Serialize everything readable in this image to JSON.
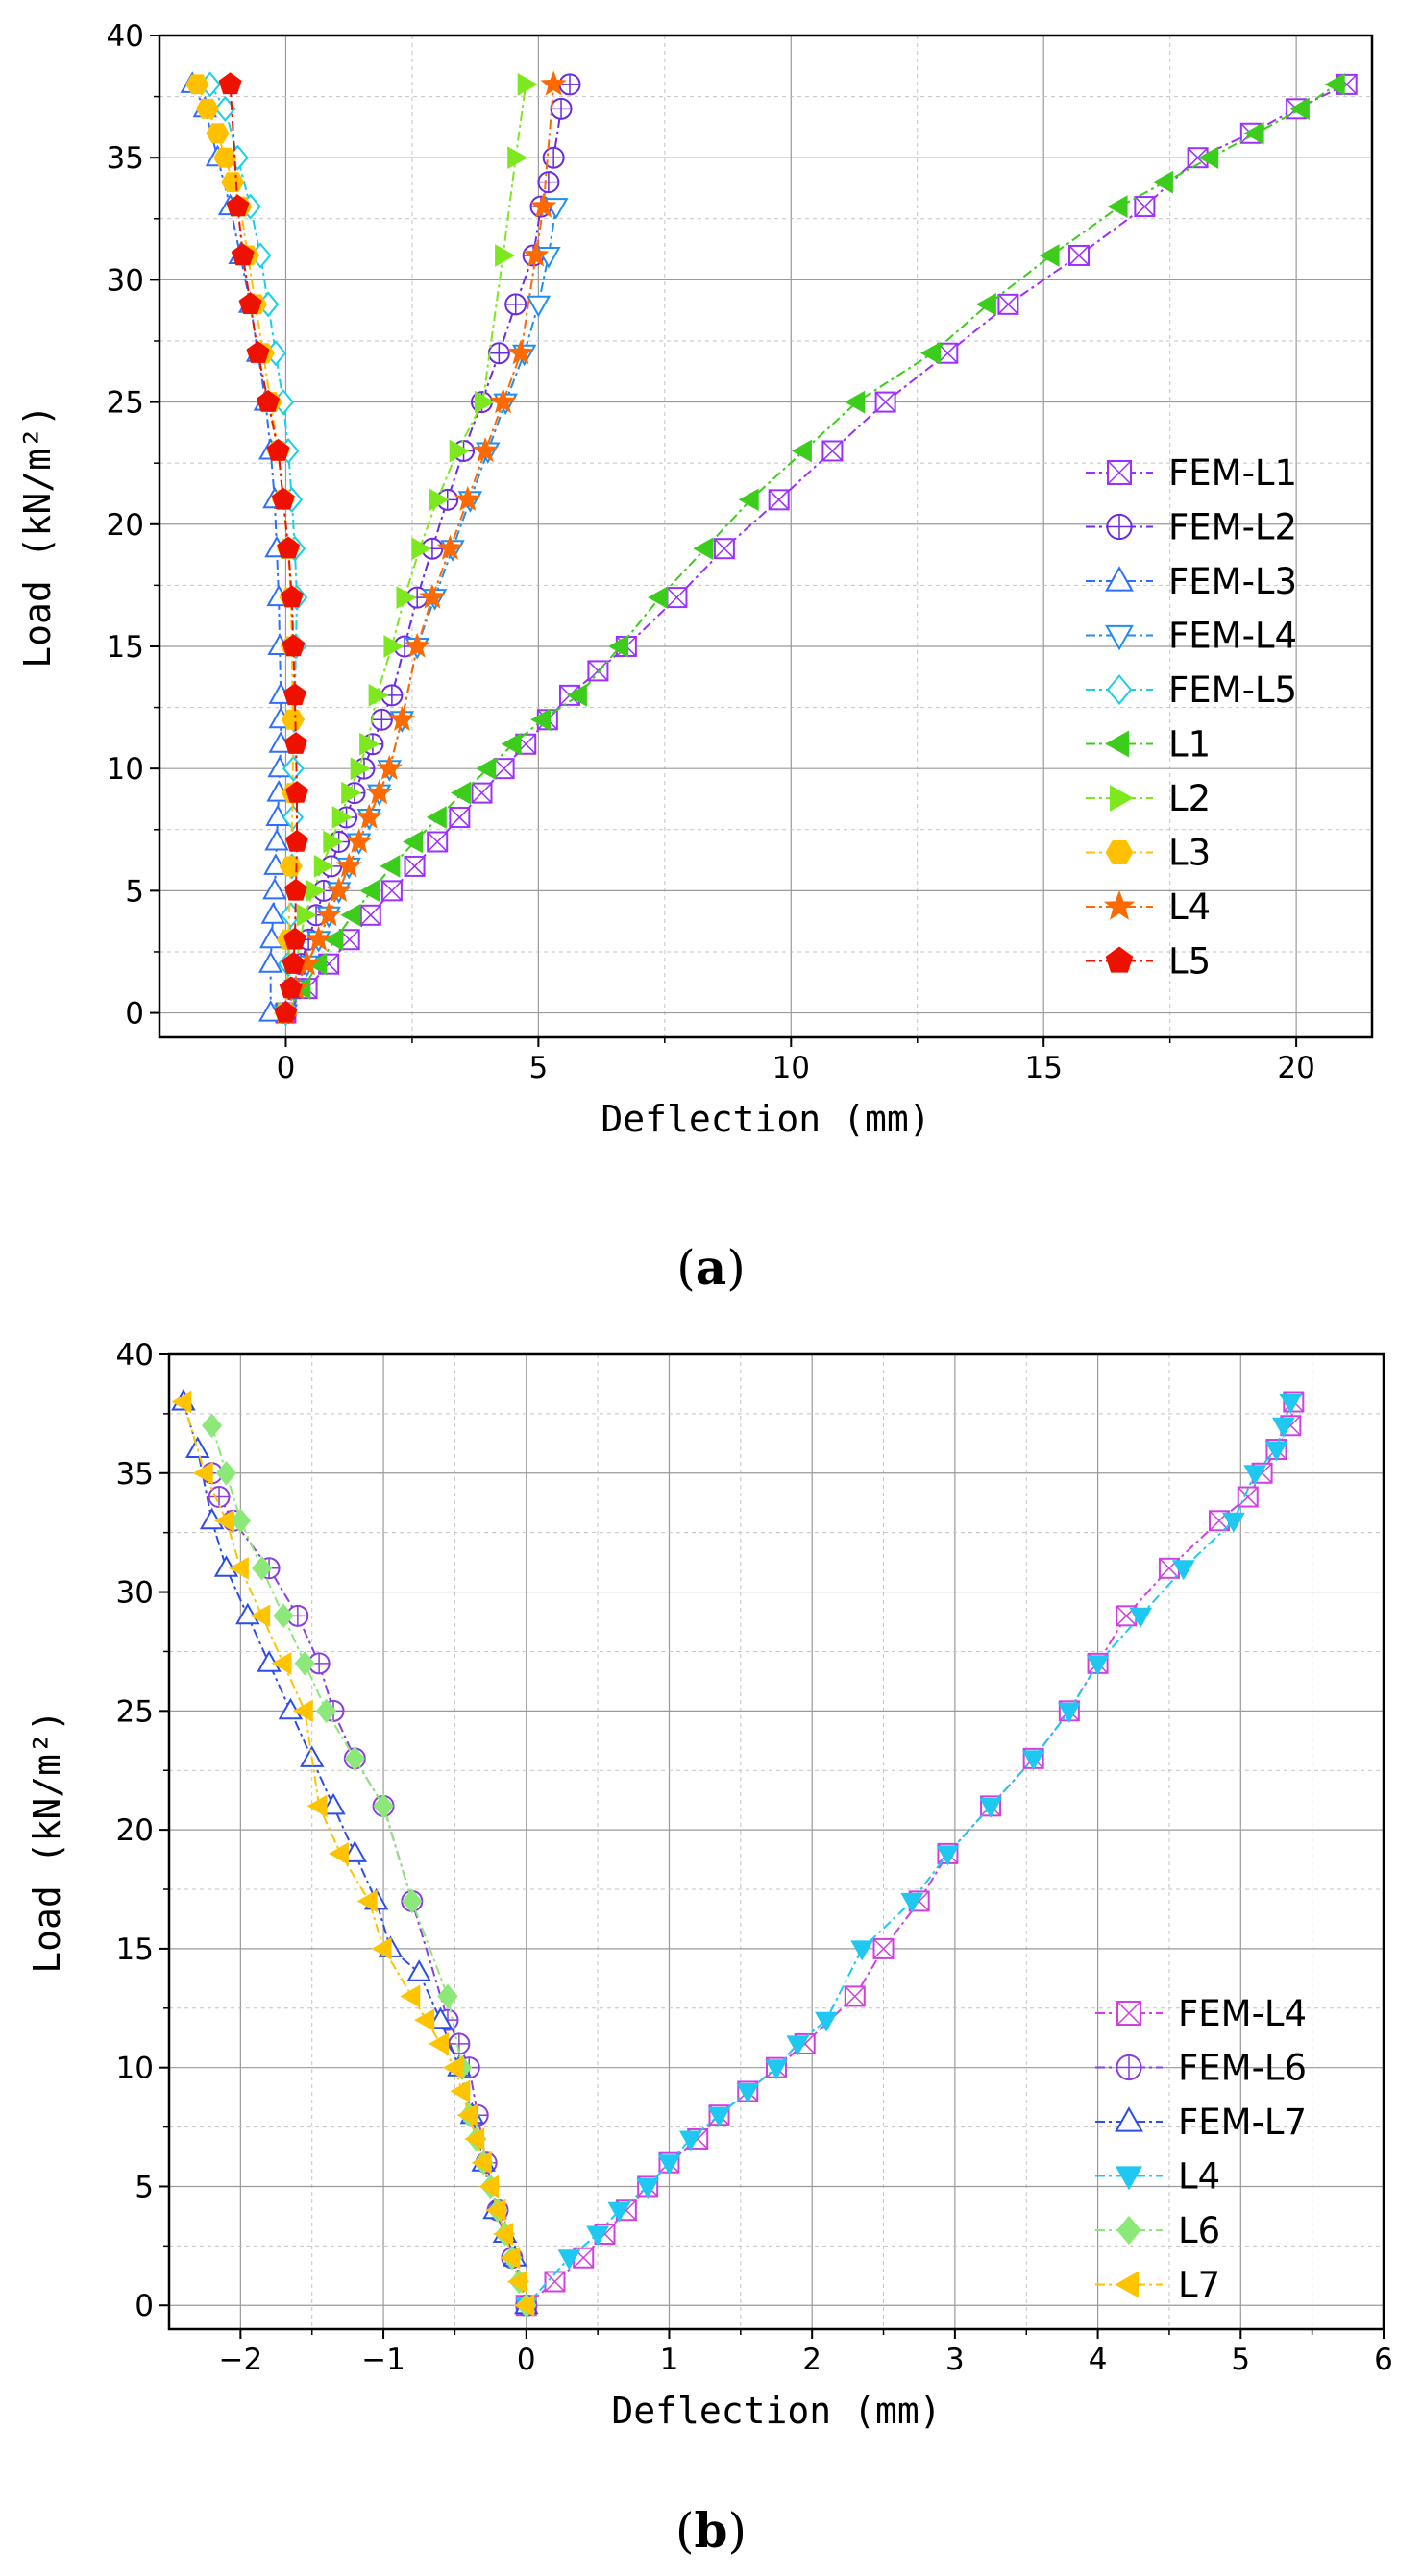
{
  "colors": {
    "FEM-L1": "#9b30ff",
    "FEM-L2": "#6a2be2",
    "FEM-L3": "#2f6fff",
    "FEM-L4a": "#1e8ff0",
    "FEM-L5": "#18d0e8",
    "L1": "#3ccd1c",
    "L2": "#7ee81e",
    "L3": "#ffc000",
    "L4a": "#ff6a00",
    "L5": "#ee1100",
    "FEM-L4b": "#d040e0",
    "FEM-L6": "#8a3ee0",
    "FEM-L7": "#2d4de8",
    "L4b": "#1ec8f0",
    "L6": "#8ce878",
    "L7": "#ffc400"
  },
  "chart_data": [
    {
      "type": "line",
      "panel": "(a)",
      "panel_letter": "a",
      "xlabel": "Deflection (mm)",
      "ylabel": "Load (kN/m²)",
      "xlim": [
        -2.5,
        21.5
      ],
      "ylim": [
        -1,
        40
      ],
      "xticks": [
        0,
        5,
        10,
        15,
        20
      ],
      "yticks": [
        0,
        5,
        10,
        15,
        20,
        25,
        30,
        35,
        40
      ],
      "grid": true,
      "legend_position": "lower-right",
      "series": [
        {
          "name": "FEM-L1",
          "marker": "square-x",
          "filled": false,
          "color_key": "FEM-L1",
          "x": [
            0,
            0.42,
            0.85,
            1.26,
            1.68,
            2.1,
            2.55,
            3.0,
            3.44,
            3.88,
            4.32,
            4.75,
            5.18,
            5.62,
            6.18,
            6.74,
            7.74,
            8.68,
            9.76,
            10.82,
            11.87,
            13.1,
            14.3,
            15.7,
            17.0,
            18.05,
            19.1,
            20.0,
            21.0
          ],
          "y": [
            0,
            1,
            2,
            3,
            4,
            5,
            6,
            7,
            8,
            9,
            10,
            11,
            12,
            13,
            14,
            15,
            17,
            19,
            21,
            23,
            25,
            27,
            29,
            31,
            33,
            35,
            36,
            37,
            38
          ]
        },
        {
          "name": "FEM-L2",
          "marker": "circle-plus",
          "filled": false,
          "color_key": "FEM-L2",
          "x": [
            0,
            0.15,
            0.3,
            0.45,
            0.6,
            0.75,
            0.9,
            1.05,
            1.2,
            1.36,
            1.55,
            1.72,
            1.9,
            2.1,
            2.35,
            2.6,
            2.9,
            3.2,
            3.52,
            3.88,
            4.22,
            4.55,
            4.9,
            5.05,
            5.2,
            5.3,
            5.45,
            5.62
          ],
          "y": [
            0,
            1,
            2,
            3,
            4,
            5,
            6,
            7,
            8,
            9,
            10,
            11,
            12,
            13,
            15,
            17,
            19,
            21,
            23,
            25,
            27,
            29,
            31,
            33,
            34,
            35,
            37,
            38
          ]
        },
        {
          "name": "FEM-L3",
          "marker": "triangle-up",
          "filled": false,
          "color_key": "FEM-L3",
          "x": [
            -0.3,
            -0.3,
            -0.28,
            -0.25,
            -0.22,
            -0.2,
            -0.18,
            -0.16,
            -0.14,
            -0.12,
            -0.1,
            -0.1,
            -0.1,
            -0.12,
            -0.14,
            -0.18,
            -0.22,
            -0.3,
            -0.4,
            -0.55,
            -0.7,
            -0.9,
            -1.1,
            -1.35,
            -1.6,
            -1.85
          ],
          "y": [
            0,
            2,
            3,
            4,
            5,
            6,
            7,
            8,
            9,
            10,
            11,
            12,
            13,
            15,
            17,
            19,
            21,
            23,
            25,
            27,
            29,
            31,
            33,
            35,
            37,
            38
          ]
        },
        {
          "name": "FEM-L4",
          "marker": "triangle-down",
          "filled": false,
          "color_key": "FEM-L4a",
          "x": [
            0,
            0.2,
            0.42,
            0.65,
            0.85,
            1.05,
            1.25,
            1.45,
            1.65,
            1.85,
            2.05,
            2.3,
            2.6,
            2.95,
            3.3,
            3.65,
            4.0,
            4.35,
            4.72,
            5.0,
            5.2,
            5.35
          ],
          "y": [
            0,
            1,
            2,
            3,
            4,
            5,
            6,
            7,
            8,
            9,
            10,
            12,
            15,
            17,
            19,
            21,
            23,
            25,
            27,
            29,
            31,
            33
          ]
        },
        {
          "name": "FEM-L5",
          "marker": "diamond",
          "filled": false,
          "color_key": "FEM-L5",
          "x": [
            0,
            0.05,
            0.1,
            0.12,
            0.14,
            0.15,
            0.16,
            0.18,
            0.2,
            0.22,
            0.18,
            0.12,
            0.05,
            -0.05,
            -0.2,
            -0.35,
            -0.5,
            -0.7,
            -0.95,
            -1.2,
            -1.5
          ],
          "y": [
            0,
            2,
            4,
            6,
            8,
            10,
            12,
            13,
            15,
            17,
            19,
            21,
            23,
            25,
            27,
            29,
            31,
            33,
            35,
            37,
            38
          ]
        },
        {
          "name": "L1",
          "marker": "triangle-left",
          "filled": true,
          "color_key": "L1",
          "x": [
            0,
            0.33,
            0.65,
            0.98,
            1.32,
            1.7,
            2.1,
            2.55,
            3.02,
            3.5,
            4.0,
            4.5,
            5.08,
            5.8,
            6.62,
            7.4,
            8.3,
            9.2,
            10.25,
            11.3,
            12.8,
            13.9,
            15.15,
            16.5,
            17.4,
            18.3,
            19.2,
            20.1,
            20.8
          ],
          "y": [
            0,
            1,
            2,
            3,
            4,
            5,
            6,
            7,
            8,
            9,
            10,
            11,
            12,
            13,
            15,
            17,
            19,
            21,
            23,
            25,
            27,
            29,
            31,
            33,
            34,
            35,
            36,
            37,
            38
          ]
        },
        {
          "name": "L2",
          "marker": "triangle-right",
          "filled": true,
          "color_key": "L2",
          "x": [
            0,
            0.2,
            0.38,
            0.55,
            0.72,
            0.9,
            1.08,
            1.26,
            1.44,
            1.62,
            1.8,
            2.1,
            2.35,
            2.65,
            3.0,
            3.4,
            3.9,
            4.3,
            4.55,
            4.75
          ],
          "y": [
            0,
            2,
            4,
            5,
            6,
            7,
            8,
            9,
            10,
            11,
            13,
            15,
            17,
            19,
            21,
            23,
            25,
            31,
            35,
            38
          ]
        },
        {
          "name": "L3",
          "marker": "hexagon",
          "filled": true,
          "color_key": "L3",
          "x": [
            0,
            0.05,
            0.1,
            0.14,
            0.14,
            0.12,
            0.1,
            0.05,
            -0.05,
            -0.15,
            -0.3,
            -0.45,
            -0.6,
            -0.75,
            -0.9,
            -1.05,
            -1.2,
            -1.35,
            -1.55,
            -1.75
          ],
          "y": [
            0,
            3,
            6,
            9,
            12,
            15,
            17,
            19,
            21,
            23,
            25,
            27,
            29,
            31,
            33,
            34,
            35,
            36,
            37,
            38
          ]
        },
        {
          "name": "L4",
          "marker": "star",
          "filled": true,
          "color_key": "L4a",
          "x": [
            0,
            0.2,
            0.42,
            0.65,
            0.85,
            1.05,
            1.25,
            1.45,
            1.65,
            1.85,
            2.05,
            2.3,
            2.6,
            2.9,
            3.25,
            3.6,
            3.95,
            4.3,
            4.65,
            4.95,
            5.1,
            5.3
          ],
          "y": [
            0,
            1,
            2,
            3,
            4,
            5,
            6,
            7,
            8,
            9,
            10,
            12,
            15,
            17,
            19,
            21,
            23,
            25,
            27,
            31,
            33,
            38
          ]
        },
        {
          "name": "L5",
          "marker": "pentagon",
          "filled": true,
          "color_key": "L5",
          "x": [
            0,
            0.1,
            0.15,
            0.18,
            0.2,
            0.22,
            0.22,
            0.2,
            0.18,
            0.15,
            0.12,
            0.05,
            -0.05,
            -0.15,
            -0.35,
            -0.55,
            -0.7,
            -0.85,
            -0.95,
            -1.1
          ],
          "y": [
            0,
            1,
            2,
            3,
            5,
            7,
            9,
            11,
            13,
            15,
            17,
            19,
            21,
            23,
            25,
            27,
            29,
            31,
            33,
            38
          ]
        }
      ]
    },
    {
      "type": "line",
      "panel": "(b)",
      "panel_letter": "b",
      "xlabel": "Deflection (mm)",
      "ylabel": "Load (kN/m²)",
      "xlim": [
        -2.5,
        6
      ],
      "ylim": [
        -1,
        40
      ],
      "xticks": [
        -2,
        -1,
        0,
        1,
        2,
        3,
        4,
        5,
        6
      ],
      "yticks": [
        0,
        5,
        10,
        15,
        20,
        25,
        30,
        35,
        40
      ],
      "grid": true,
      "legend_position": "lower-right",
      "series": [
        {
          "name": "FEM-L4",
          "marker": "square-x",
          "filled": false,
          "color_key": "FEM-L4b",
          "x": [
            0,
            0.2,
            0.4,
            0.55,
            0.7,
            0.85,
            1.0,
            1.2,
            1.35,
            1.55,
            1.75,
            1.95,
            2.3,
            2.5,
            2.75,
            2.95,
            3.25,
            3.55,
            3.8,
            4.0,
            4.2,
            4.5,
            4.85,
            5.05,
            5.15,
            5.25,
            5.35,
            5.37
          ],
          "y": [
            0,
            1,
            2,
            3,
            4,
            5,
            6,
            7,
            8,
            9,
            10,
            11,
            13,
            15,
            17,
            19,
            21,
            23,
            25,
            27,
            29,
            31,
            33,
            34,
            35,
            36,
            37,
            38
          ]
        },
        {
          "name": "FEM-L6",
          "marker": "circle-plus",
          "filled": false,
          "color_key": "FEM-L6",
          "x": [
            0,
            -0.1,
            -0.2,
            -0.28,
            -0.34,
            -0.4,
            -0.47,
            -0.55,
            -0.8,
            -1.0,
            -1.2,
            -1.35,
            -1.45,
            -1.6,
            -1.8,
            -2.05,
            -2.15,
            -2.2
          ],
          "y": [
            0,
            2,
            4,
            6,
            8,
            10,
            11,
            12,
            17,
            21,
            23,
            25,
            27,
            29,
            31,
            33,
            34,
            35
          ]
        },
        {
          "name": "FEM-L7",
          "marker": "triangle-up",
          "filled": false,
          "color_key": "FEM-L7",
          "x": [
            0,
            -0.08,
            -0.15,
            -0.22,
            -0.3,
            -0.38,
            -0.47,
            -0.6,
            -0.75,
            -0.95,
            -1.05,
            -1.2,
            -1.35,
            -1.5,
            -1.65,
            -1.8,
            -1.95,
            -2.1,
            -2.2,
            -2.3,
            -2.4
          ],
          "y": [
            0,
            2,
            3,
            4,
            6,
            8,
            10,
            12,
            14,
            15,
            17,
            19,
            21,
            23,
            25,
            27,
            29,
            31,
            33,
            36,
            38
          ]
        },
        {
          "name": "L4",
          "marker": "triangle-down",
          "filled": true,
          "color_key": "L4b",
          "x": [
            0,
            0.3,
            0.5,
            0.65,
            0.85,
            1.0,
            1.15,
            1.35,
            1.55,
            1.75,
            1.9,
            2.1,
            2.35,
            2.7,
            2.95,
            3.25,
            3.55,
            3.8,
            4.0,
            4.3,
            4.6,
            4.95,
            5.1,
            5.25,
            5.3,
            5.35
          ],
          "y": [
            0,
            2,
            3,
            4,
            5,
            6,
            7,
            8,
            9,
            10,
            11,
            12,
            15,
            17,
            19,
            21,
            23,
            25,
            27,
            29,
            31,
            33,
            35,
            36,
            37,
            38
          ]
        },
        {
          "name": "L6",
          "marker": "diamond",
          "filled": true,
          "color_key": "L6",
          "x": [
            0,
            -0.05,
            -0.1,
            -0.15,
            -0.2,
            -0.25,
            -0.3,
            -0.35,
            -0.4,
            -0.45,
            -0.55,
            -0.8,
            -1.0,
            -1.2,
            -1.4,
            -1.55,
            -1.7,
            -1.85,
            -2.0,
            -2.1,
            -2.2
          ],
          "y": [
            0,
            1,
            2,
            3,
            4,
            5,
            6,
            7,
            8,
            10,
            13,
            17,
            21,
            23,
            25,
            27,
            29,
            31,
            33,
            35,
            37
          ]
        },
        {
          "name": "L7",
          "marker": "triangle-left",
          "filled": true,
          "color_key": "L7",
          "x": [
            0,
            -0.05,
            -0.1,
            -0.15,
            -0.2,
            -0.25,
            -0.3,
            -0.35,
            -0.4,
            -0.45,
            -0.5,
            -0.6,
            -0.7,
            -0.8,
            -1.0,
            -1.1,
            -1.3,
            -1.45,
            -1.55,
            -1.7,
            -1.85,
            -2.0,
            -2.1,
            -2.25,
            -2.4
          ],
          "y": [
            0,
            1,
            2,
            3,
            4,
            5,
            6,
            7,
            8,
            9,
            10,
            11,
            12,
            13,
            15,
            17,
            19,
            21,
            25,
            27,
            29,
            31,
            33,
            35,
            38
          ]
        }
      ]
    }
  ]
}
